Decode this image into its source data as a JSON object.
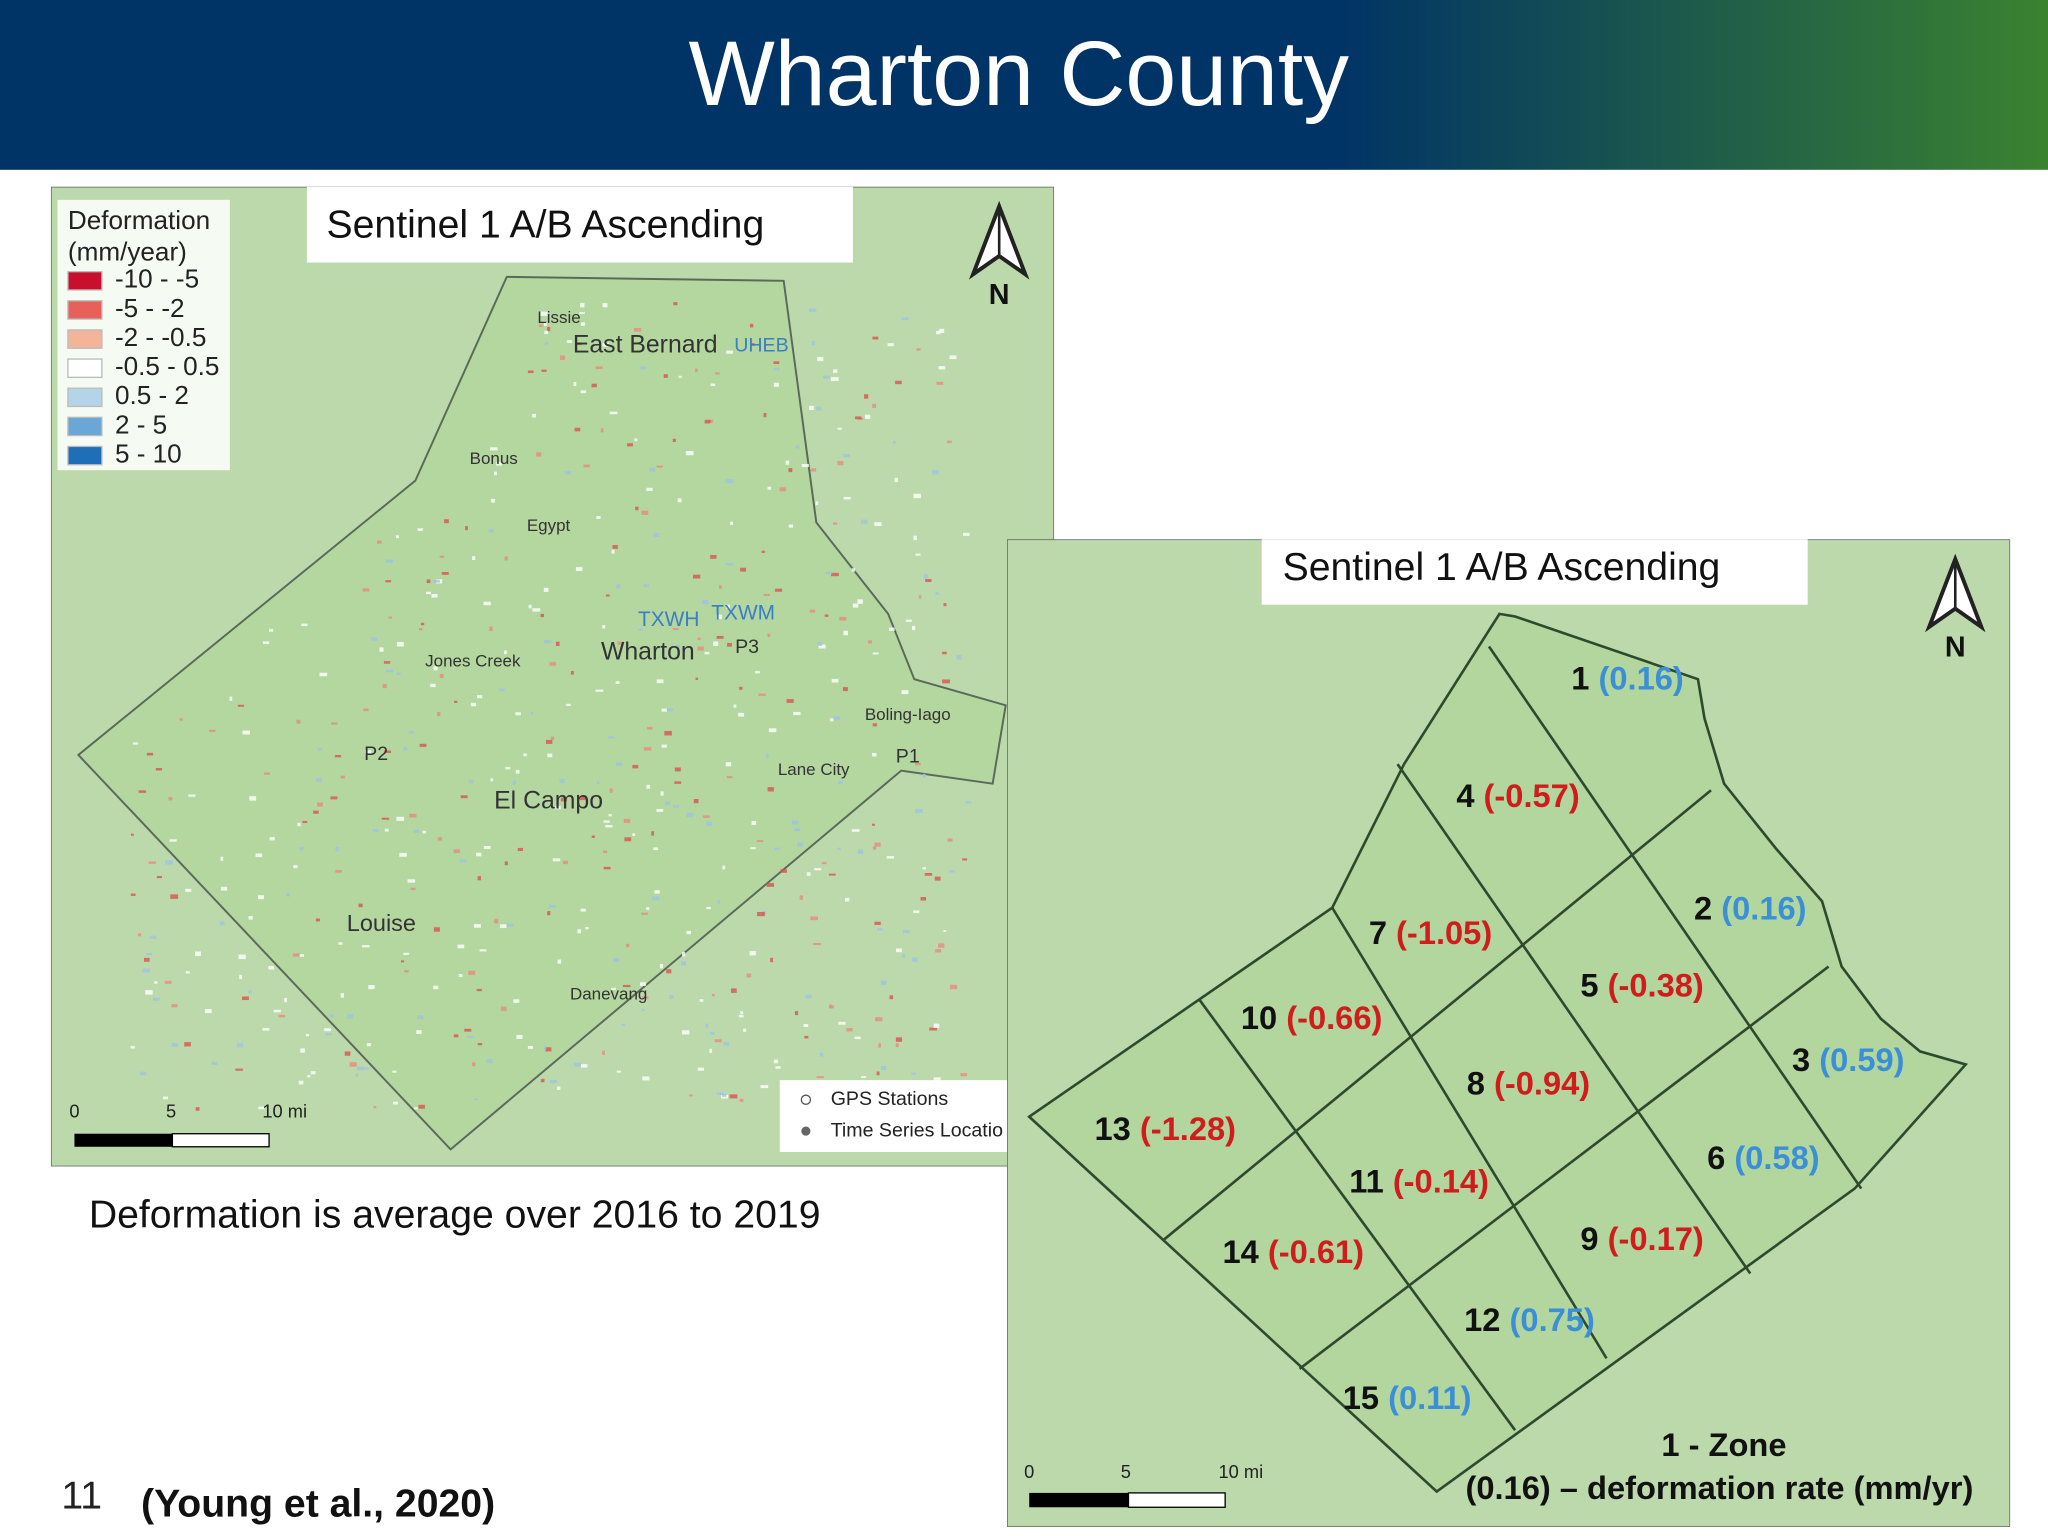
{
  "header": {
    "title": "Wharton County"
  },
  "left_map": {
    "caption": "Sentinel 1 A/B  Ascending",
    "north": "N",
    "legend": {
      "title": [
        "Deformation",
        "(mm/year)"
      ],
      "items": [
        {
          "label": "-10 - -5",
          "color": "#c8102e"
        },
        {
          "label": "-5 - -2",
          "color": "#e8605a"
        },
        {
          "label": "-2 - -0.5",
          "color": "#f4b49a"
        },
        {
          "label": "-0.5 - 0.5",
          "color": "#ffffff"
        },
        {
          "label": "0.5 - 2",
          "color": "#b4d4ea"
        },
        {
          "label": "2 - 5",
          "color": "#6aa6d6"
        },
        {
          "label": "5 - 10",
          "color": "#1f6fb8"
        }
      ]
    },
    "places": [
      {
        "label": "Lissie",
        "color": "#333333"
      },
      {
        "label": "East Bernard",
        "color": "#333333"
      },
      {
        "label": "UHEB",
        "color": "#3a7ec4"
      },
      {
        "label": "Bonus",
        "color": "#333333"
      },
      {
        "label": "Egypt",
        "color": "#333333"
      },
      {
        "label": "TXWH",
        "color": "#3a7ec4"
      },
      {
        "label": "TXWM",
        "color": "#3a7ec4"
      },
      {
        "label": "Wharton",
        "color": "#333333"
      },
      {
        "label": "P3",
        "color": "#333333"
      },
      {
        "label": "Jones Creek",
        "color": "#333333"
      },
      {
        "label": "Boling-Iago",
        "color": "#333333"
      },
      {
        "label": "P2",
        "color": "#333333"
      },
      {
        "label": "Lane City",
        "color": "#333333"
      },
      {
        "label": "P1",
        "color": "#333333"
      },
      {
        "label": "El Campo",
        "color": "#333333"
      },
      {
        "label": "Louise",
        "color": "#333333"
      },
      {
        "label": "Danevang",
        "color": "#333333"
      }
    ],
    "scale": [
      "0",
      "5",
      "10 mi"
    ],
    "point_legend": [
      "GPS Stations",
      "Time Series Locatio"
    ]
  },
  "caption": "Deformation is average over 2016 to 2019",
  "right_map": {
    "caption": "Sentinel 1 A/B  Ascending",
    "north": "N",
    "zones": [
      {
        "label": "1",
        "rate": "(0.16)",
        "color": "#3a8fd6"
      },
      {
        "label": "2",
        "rate": "(0.16)",
        "color": "#3a8fd6"
      },
      {
        "label": "3",
        "rate": "(0.59)",
        "color": "#3a8fd6"
      },
      {
        "label": "4",
        "rate": "(-0.57)",
        "color": "#d01c1c"
      },
      {
        "label": "5",
        "rate": "(-0.38)",
        "color": "#d01c1c"
      },
      {
        "label": "6",
        "rate": "(0.58)",
        "color": "#3a8fd6"
      },
      {
        "label": "7",
        "rate": "(-1.05)",
        "color": "#d01c1c"
      },
      {
        "label": "8",
        "rate": "(-0.94)",
        "color": "#d01c1c"
      },
      {
        "label": "9",
        "rate": "(-0.17)",
        "color": "#d01c1c"
      },
      {
        "label": "10",
        "rate": "(-0.66)",
        "color": "#d01c1c"
      },
      {
        "label": "11",
        "rate": "(-0.14)",
        "color": "#d01c1c"
      },
      {
        "label": "12",
        "rate": "(0.75)",
        "color": "#3a8fd6"
      },
      {
        "label": "13",
        "rate": "(-1.28)",
        "color": "#d01c1c"
      },
      {
        "label": "14",
        "rate": "(-0.61)",
        "color": "#d01c1c"
      },
      {
        "label": "15",
        "rate": "(0.11)",
        "color": "#3a8fd6"
      }
    ],
    "key": [
      "1  - Zone",
      "(0.16) – deformation rate (mm/yr)"
    ],
    "scale": [
      "0",
      "5",
      "10 mi"
    ]
  },
  "footer": {
    "page": "11",
    "citation": "(Young et al., 2020)"
  }
}
